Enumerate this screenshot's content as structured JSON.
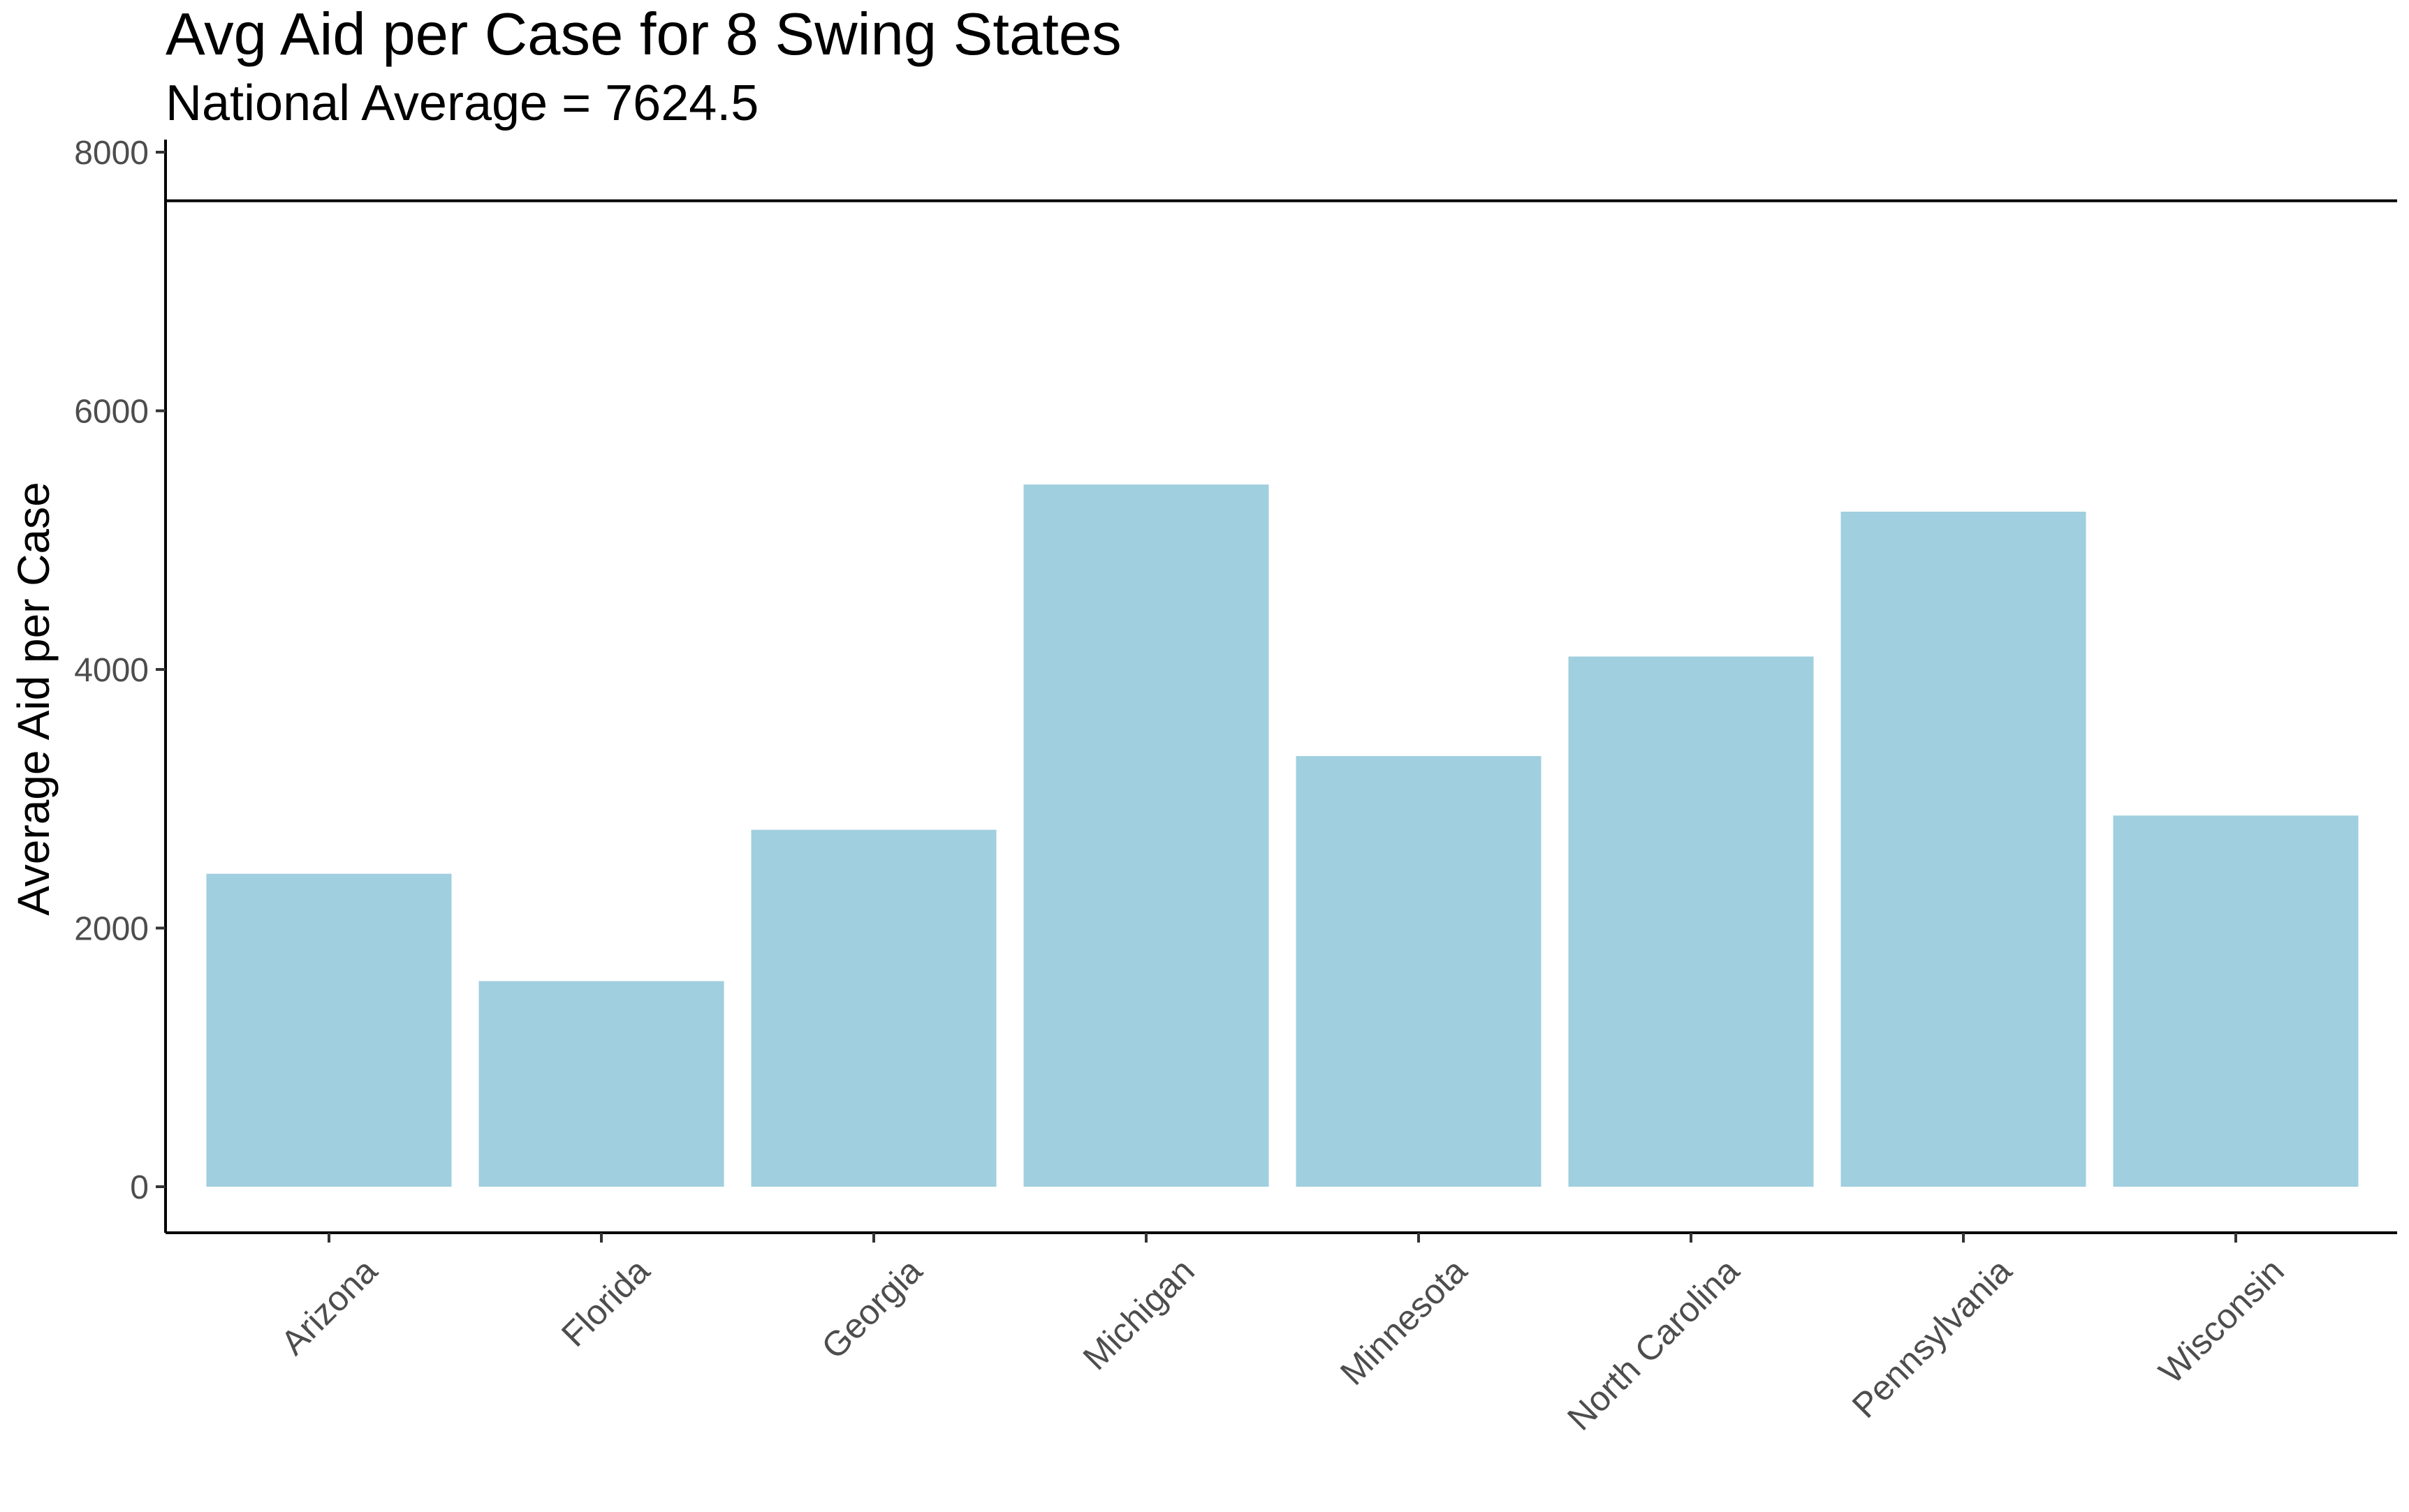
{
  "chart_data": {
    "type": "bar",
    "title": "Avg Aid per Case for 8 Swing States",
    "subtitle": "National Average = 7624.5",
    "xlabel": "",
    "ylabel": "Average Aid per Case",
    "categories": [
      "Arizona",
      "Florida",
      "Georgia",
      "Michigan",
      "Minnesota",
      "North Carolina",
      "Pennsylvania",
      "Wisconsin"
    ],
    "values": [
      2420,
      1590,
      2760,
      5430,
      3330,
      4100,
      5220,
      2870
    ],
    "ylim": [
      0,
      8000
    ],
    "yticks": [
      0,
      2000,
      4000,
      6000,
      8000
    ],
    "reference_line": {
      "value": 7624.5
    },
    "grid": false,
    "legend": "none",
    "colors": {
      "bar": "#a0cfdf",
      "axis": "#000000",
      "tick_text": "#4d4d4d"
    }
  }
}
